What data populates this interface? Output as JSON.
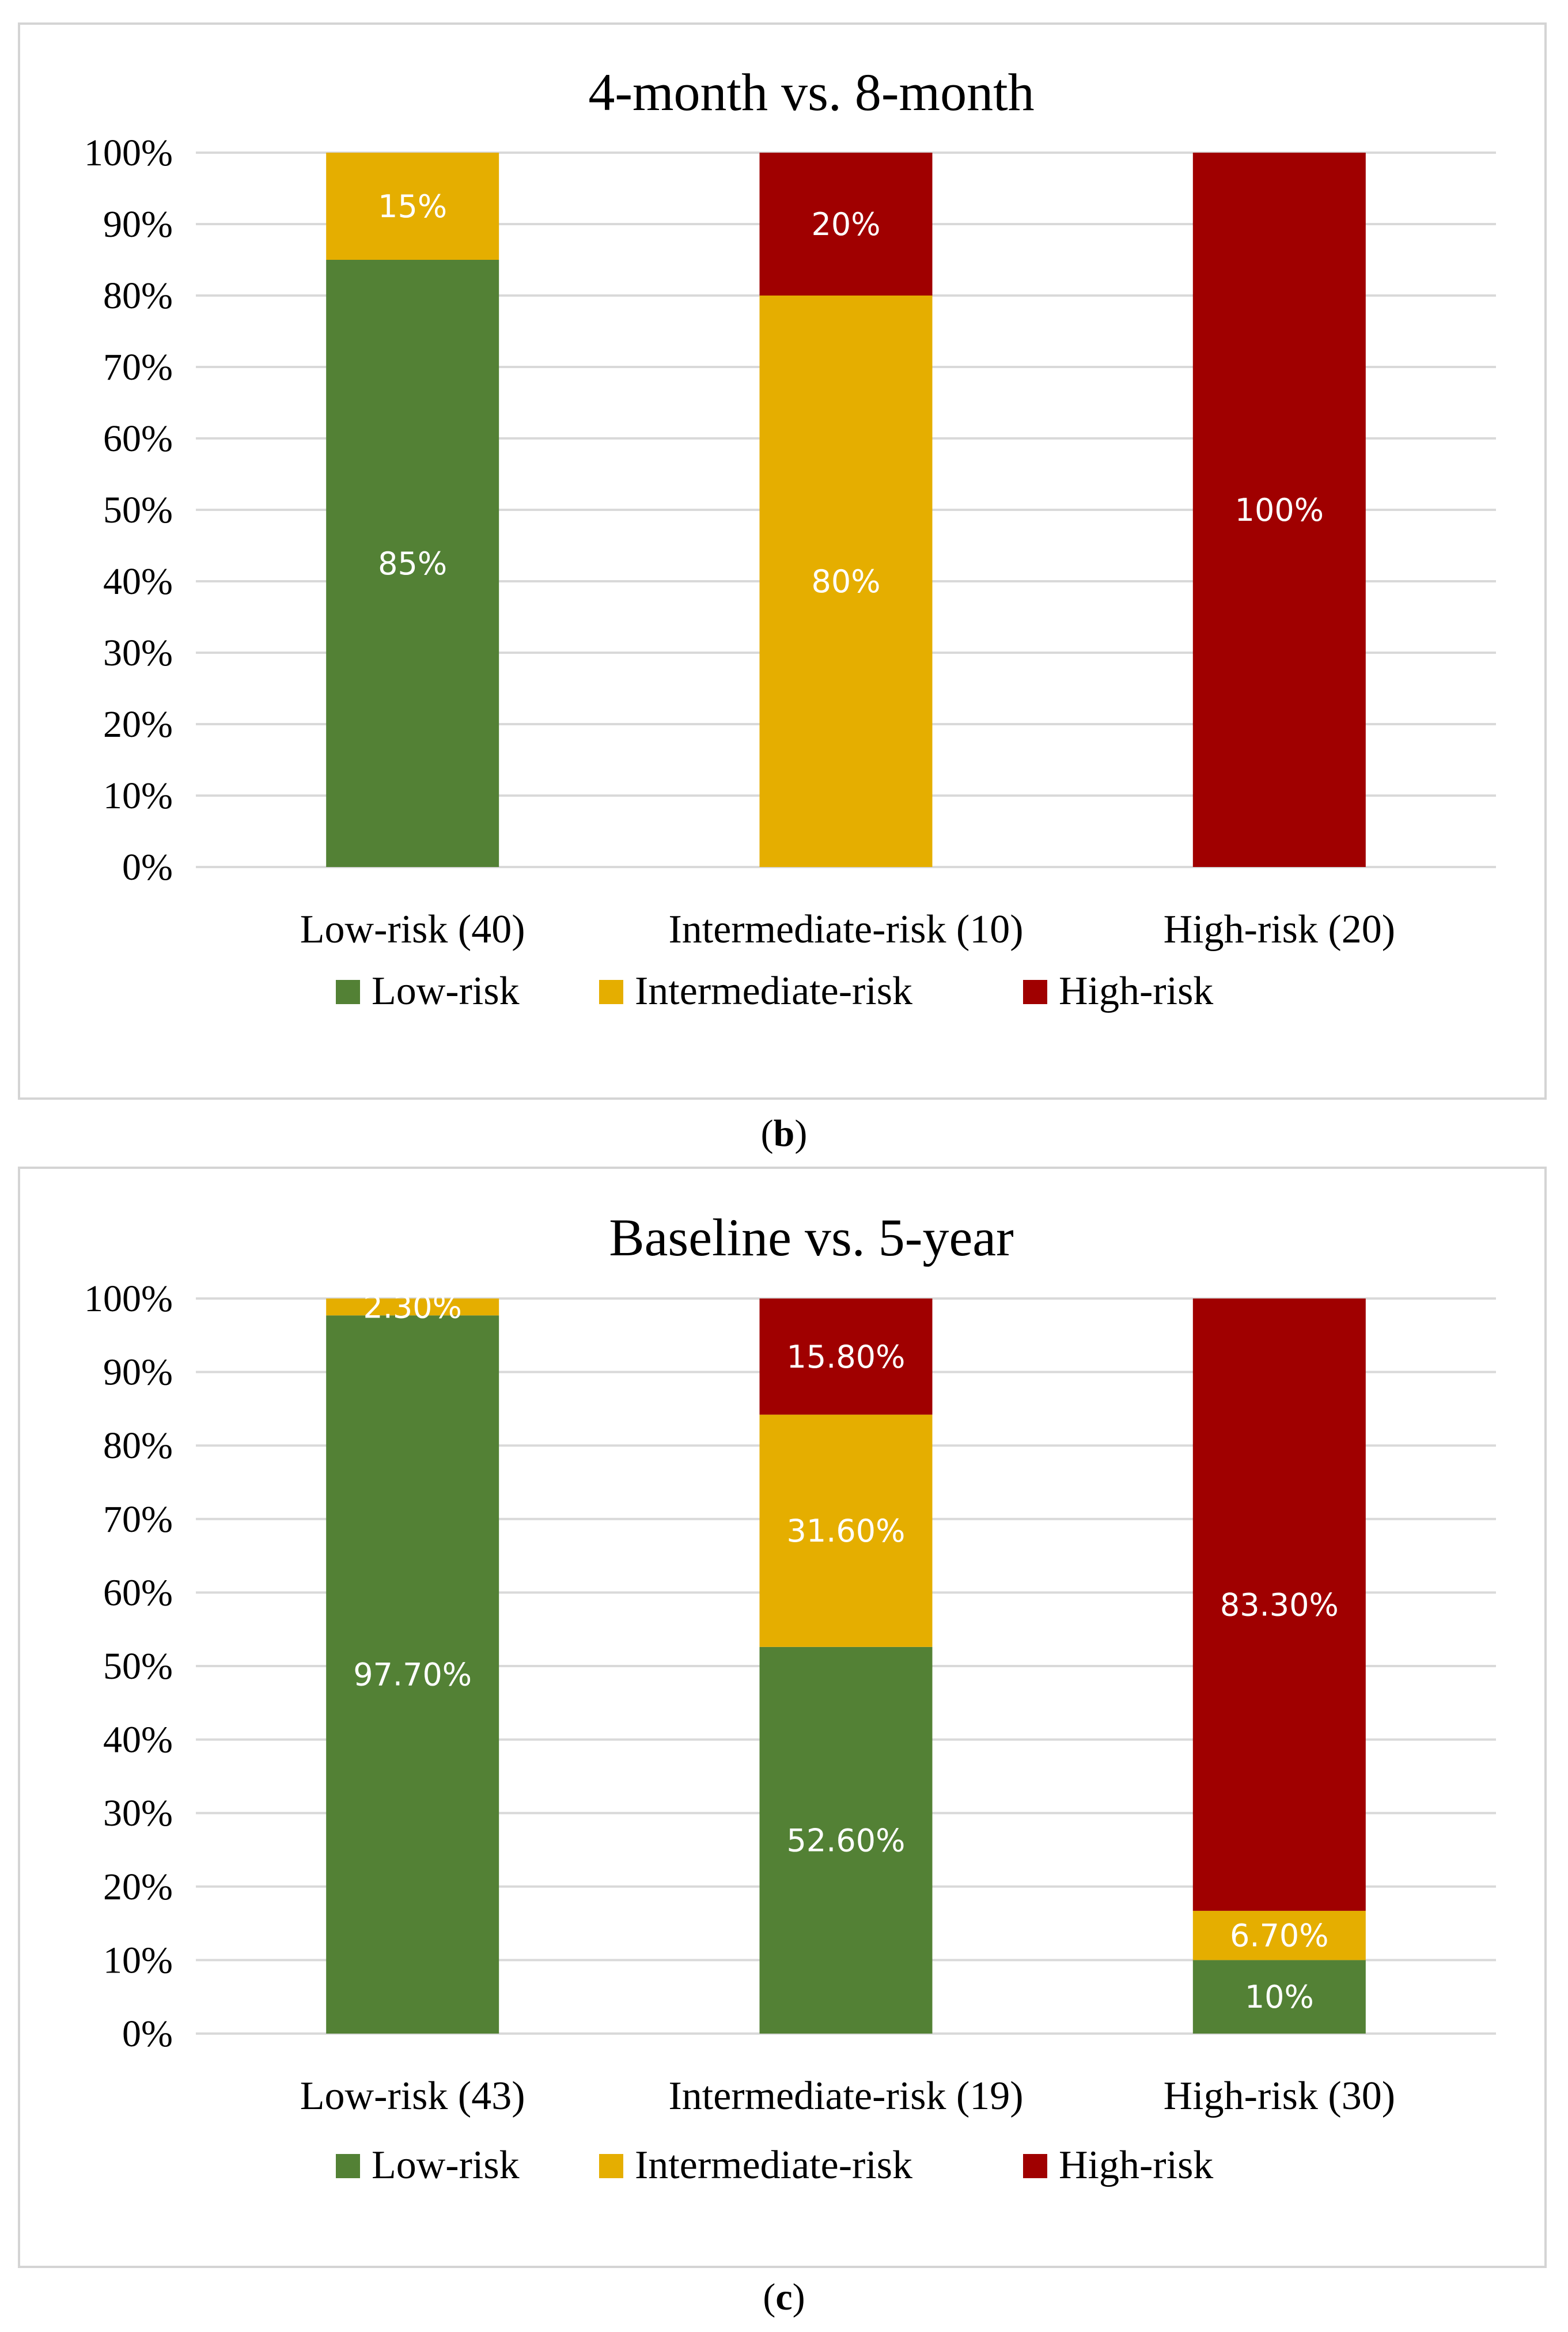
{
  "chart_data": [
    {
      "type": "bar",
      "stacked": true,
      "title": "4-month vs. 8-month",
      "caption_letter": "b",
      "categories": [
        "Low-risk (40)",
        "Intermediate-risk (10)",
        "High-risk (20)"
      ],
      "series": [
        {
          "name": "Low-risk",
          "color": "#538135",
          "values": [
            85,
            0,
            0
          ],
          "labels": [
            "85%",
            "",
            ""
          ]
        },
        {
          "name": "Intermediate-risk",
          "color": "#E5AE00",
          "values": [
            15,
            80,
            0
          ],
          "labels": [
            "15%",
            "80%",
            ""
          ]
        },
        {
          "name": "High-risk",
          "color": "#A00000",
          "values": [
            0,
            20,
            100
          ],
          "labels": [
            "",
            "20%",
            "100%"
          ]
        }
      ],
      "yticks": [
        "0%",
        "10%",
        "20%",
        "30%",
        "40%",
        "50%",
        "60%",
        "70%",
        "80%",
        "90%",
        "100%"
      ],
      "ylim": [
        0,
        100
      ],
      "xlabel": "",
      "ylabel": "",
      "grid": true,
      "legend_position": "bottom"
    },
    {
      "type": "bar",
      "stacked": true,
      "title": "Baseline vs. 5-year",
      "caption_letter": "c",
      "categories": [
        "Low-risk (43)",
        "Intermediate-risk (19)",
        "High-risk (30)"
      ],
      "series": [
        {
          "name": "Low-risk",
          "color": "#538135",
          "values": [
            97.7,
            52.6,
            10
          ],
          "labels": [
            "97.70%",
            "52.60%",
            "10%"
          ]
        },
        {
          "name": "Intermediate-risk",
          "color": "#E5AE00",
          "values": [
            2.3,
            31.6,
            6.7
          ],
          "labels": [
            "2.30%",
            "31.60%",
            "6.70%"
          ]
        },
        {
          "name": "High-risk",
          "color": "#A00000",
          "values": [
            0,
            15.8,
            83.3
          ],
          "labels": [
            "",
            "15.80%",
            "83.30%"
          ]
        }
      ],
      "yticks": [
        "0%",
        "10%",
        "20%",
        "30%",
        "40%",
        "50%",
        "60%",
        "70%",
        "80%",
        "90%",
        "100%"
      ],
      "ylim": [
        0,
        100
      ],
      "xlabel": "",
      "ylabel": "",
      "grid": true,
      "legend_position": "bottom"
    }
  ]
}
